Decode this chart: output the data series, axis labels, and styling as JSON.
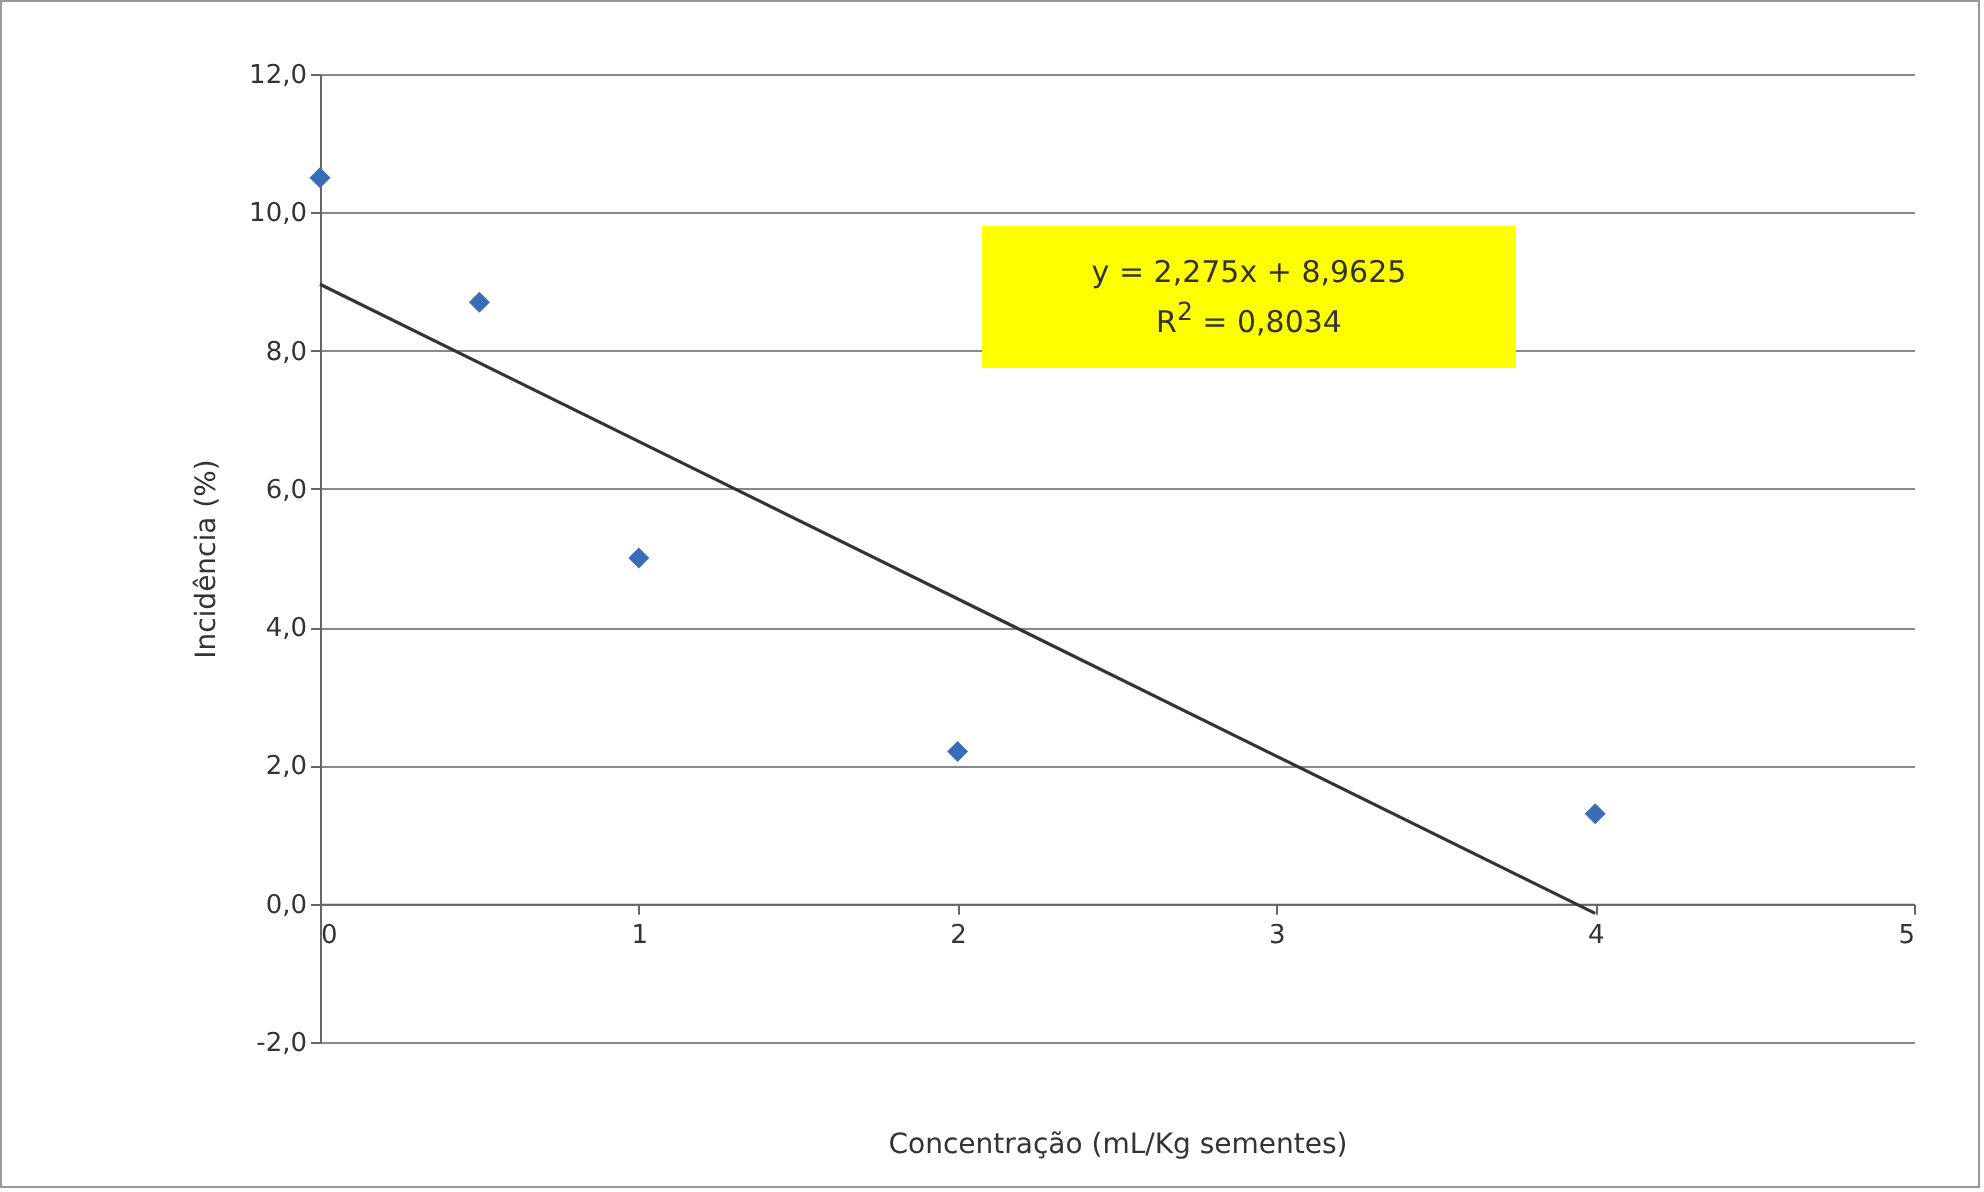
{
  "chart_data": {
    "type": "scatter",
    "xlabel": "Concentração (mL/Kg sementes)",
    "ylabel": "Incidência (%)",
    "xlim": [
      0,
      5
    ],
    "xticks": [
      0,
      1,
      2,
      3,
      4,
      5
    ],
    "ylim": [
      -2,
      12
    ],
    "yticks": [
      {
        "value": -2,
        "label": "-2,0"
      },
      {
        "value": 0,
        "label": "0,0"
      },
      {
        "value": 2,
        "label": "2,0"
      },
      {
        "value": 4,
        "label": "4,0"
      },
      {
        "value": 6,
        "label": "6,0"
      },
      {
        "value": 8,
        "label": "8,0"
      },
      {
        "value": 10,
        "label": "10,0"
      },
      {
        "value": 12,
        "label": "12,0"
      }
    ],
    "grid": "y",
    "annotations": [
      "y = 2,275x + 8,9625",
      "R$^{2}$ = 0,8034"
    ],
    "series": [
      {
        "marker": "diamond",
        "color": "#3a6db5",
        "x": [
          0,
          0.5,
          1,
          2,
          4
        ],
        "values": [
          10.5,
          8.7,
          5.0,
          2.2,
          1.3
        ]
      },
      {
        "type": "line",
        "color": "#333333",
        "x": [
          0,
          4
        ],
        "values": [
          8.96,
          -0.14
        ]
      }
    ]
  }
}
